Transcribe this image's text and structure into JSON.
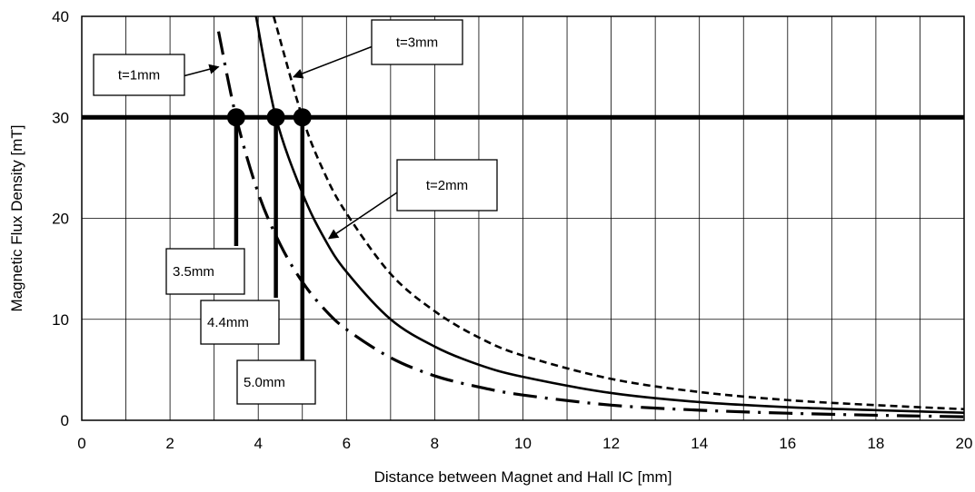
{
  "chart_data": {
    "type": "line",
    "title": "",
    "xlabel": "Distance between Magnet and Hall IC [mm]",
    "ylabel": "Magnetic Flux Density [mT]",
    "xlim": [
      0,
      20
    ],
    "ylim": [
      0,
      40
    ],
    "x_ticks": [
      0,
      2,
      4,
      6,
      8,
      10,
      12,
      14,
      16,
      18,
      20
    ],
    "y_ticks": [
      0,
      10,
      20,
      30,
      40
    ],
    "grid": {
      "vertical_every": 1,
      "horizontal_every": 10
    },
    "legend": "none",
    "series": [
      {
        "name": "t=1mm",
        "style": "dash-dot",
        "x": [
          3.1,
          3.5,
          4,
          4.5,
          5,
          5.5,
          6,
          7,
          8,
          9,
          10,
          12,
          14,
          16,
          18,
          20
        ],
        "y": [
          38.5,
          30,
          22.5,
          17.4,
          13.7,
          11.0,
          9.0,
          6.2,
          4.4,
          3.3,
          2.5,
          1.5,
          1.0,
          0.7,
          0.5,
          0.35
        ]
      },
      {
        "name": "t=2mm",
        "style": "solid",
        "x": [
          3.95,
          4.4,
          5,
          5.5,
          6,
          7,
          8,
          9,
          10,
          12,
          14,
          16,
          18,
          20
        ],
        "y": [
          40,
          30,
          22.5,
          18.0,
          14.7,
          10.0,
          7.3,
          5.5,
          4.3,
          2.7,
          1.8,
          1.3,
          1.0,
          0.75
        ]
      },
      {
        "name": "t=3mm",
        "style": "dashed",
        "x": [
          4.35,
          5,
          5.5,
          6,
          7,
          8,
          9,
          10,
          12,
          14,
          16,
          18,
          20
        ],
        "y": [
          40,
          30,
          24.5,
          20.5,
          14.5,
          10.8,
          8.2,
          6.4,
          4.1,
          2.8,
          2.0,
          1.5,
          1.1
        ]
      }
    ],
    "threshold": {
      "y": 30
    },
    "markers": [
      {
        "x": 3.5,
        "y": 30,
        "label": "3.5mm"
      },
      {
        "x": 4.4,
        "y": 30,
        "label": "4.4mm"
      },
      {
        "x": 5.0,
        "y": 30,
        "label": "5.0mm"
      }
    ],
    "callouts": [
      {
        "text": "t=1mm",
        "target": [
          3.1,
          35
        ]
      },
      {
        "text": "t=3mm",
        "target": [
          4.8,
          34
        ]
      },
      {
        "text": "t=2mm",
        "target": [
          5.6,
          18
        ]
      }
    ]
  }
}
